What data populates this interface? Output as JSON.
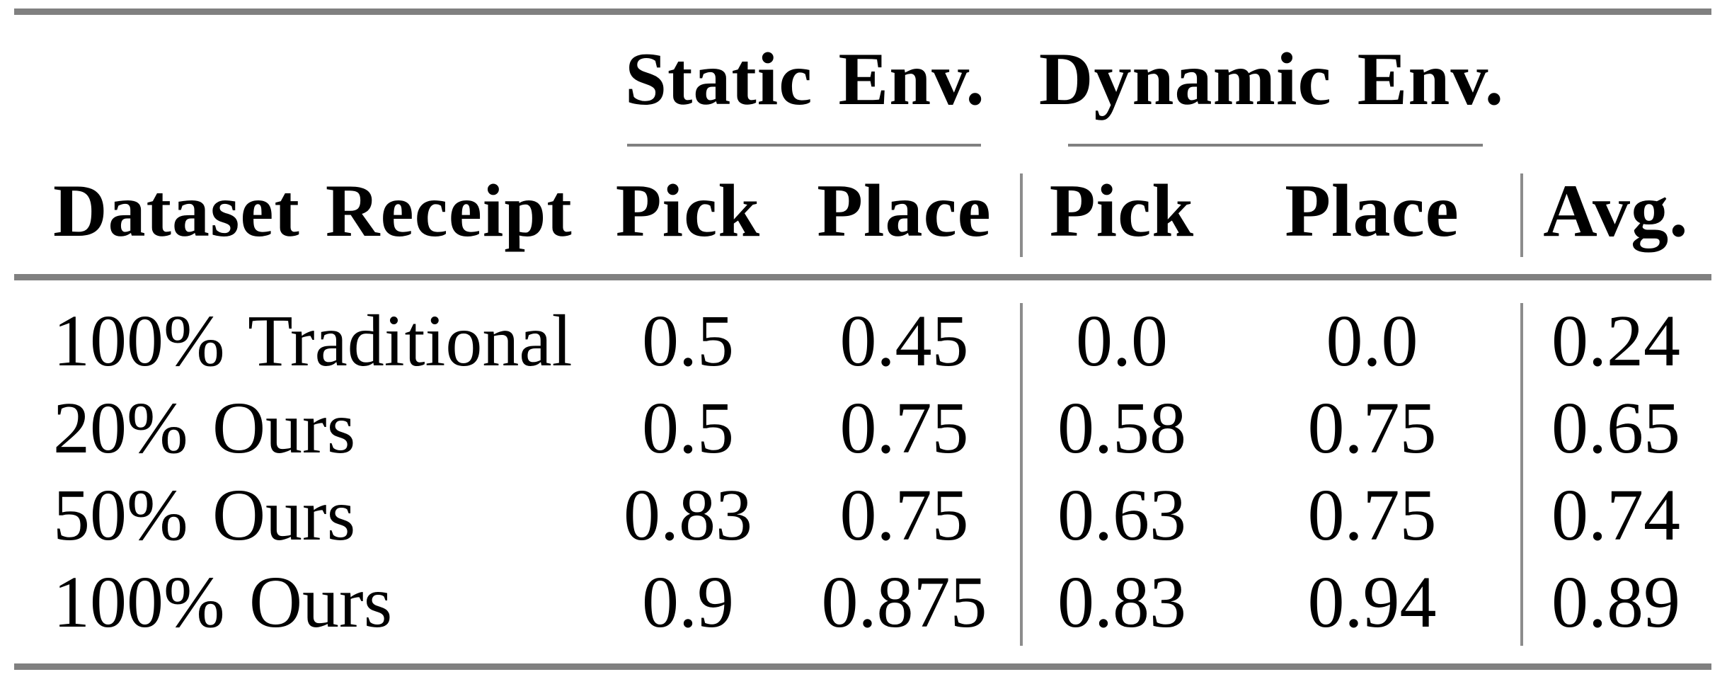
{
  "table": {
    "groups": [
      {
        "label": "Static Env."
      },
      {
        "label": "Dynamic Env."
      }
    ],
    "headers": {
      "row_label": "Dataset Receipt",
      "col_labels": [
        "Pick",
        "Place",
        "Pick",
        "Place"
      ],
      "avg_label": "Avg."
    },
    "rows": [
      {
        "label": "100% Traditional",
        "values": [
          "0.5",
          "0.45",
          "0.0",
          "0.0",
          "0.24"
        ]
      },
      {
        "label": "20% Ours",
        "values": [
          "0.5",
          "0.75",
          "0.58",
          "0.75",
          "0.65"
        ]
      },
      {
        "label": "50% Ours",
        "values": [
          "0.83",
          "0.75",
          "0.63",
          "0.75",
          "0.74"
        ]
      },
      {
        "label": "100% Ours",
        "values": [
          "0.9",
          "0.875",
          "0.83",
          "0.94",
          "0.89"
        ]
      }
    ],
    "colors": {
      "rule": "#808080",
      "divider": "#8c8c8c",
      "text": "#000000",
      "background": "#ffffff"
    }
  },
  "chart_data": {
    "type": "table",
    "title": "",
    "column_groups": [
      "Static Env.",
      "Static Env.",
      "Dynamic Env.",
      "Dynamic Env.",
      ""
    ],
    "columns": [
      "Dataset Receipt",
      "Pick",
      "Place",
      "Pick",
      "Place",
      "Avg."
    ],
    "rows": [
      [
        "100% Traditional",
        0.5,
        0.45,
        0.0,
        0.0,
        0.24
      ],
      [
        "20% Ours",
        0.5,
        0.75,
        0.58,
        0.75,
        0.65
      ],
      [
        "50% Ours",
        0.83,
        0.75,
        0.63,
        0.75,
        0.74
      ],
      [
        "100% Ours",
        0.9,
        0.875,
        0.83,
        0.94,
        0.89
      ]
    ]
  }
}
